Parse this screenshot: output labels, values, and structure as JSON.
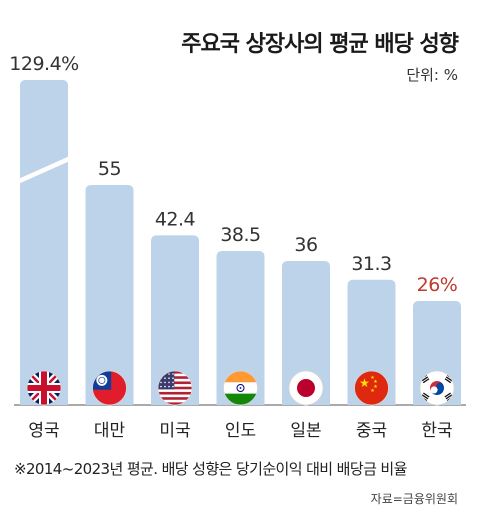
{
  "title": "주요국 상장사의 평균 배당 성향",
  "unit_label": "단위: %",
  "footnote": "※2014~2023년 평균. 배당 성향은 당기순이익 대비 배당금 비율",
  "source": "자료=금융위원회",
  "colors": {
    "bar": "#bcd3ea",
    "label_default": "#333333",
    "label_highlight": "#c0392b",
    "axis": "#555555"
  },
  "chart_data": {
    "type": "bar",
    "title": "주요국 상장사의 평균 배당 성향",
    "xlabel": "",
    "ylabel": "",
    "categories": [
      "영국",
      "대만",
      "미국",
      "인도",
      "일본",
      "중국",
      "한국"
    ],
    "values": [
      129.4,
      55,
      42.4,
      38.5,
      36,
      31.3,
      26
    ],
    "value_labels": [
      "129.4%",
      "55",
      "42.4",
      "38.5",
      "36",
      "31.3",
      "26%"
    ],
    "flag_icons": [
      "uk-flag-icon",
      "taiwan-flag-icon",
      "usa-flag-icon",
      "india-flag-icon",
      "japan-flag-icon",
      "china-flag-icon",
      "korea-flag-icon"
    ],
    "highlight_category": "한국",
    "axis_break": true,
    "grid": false,
    "legend": "none"
  }
}
